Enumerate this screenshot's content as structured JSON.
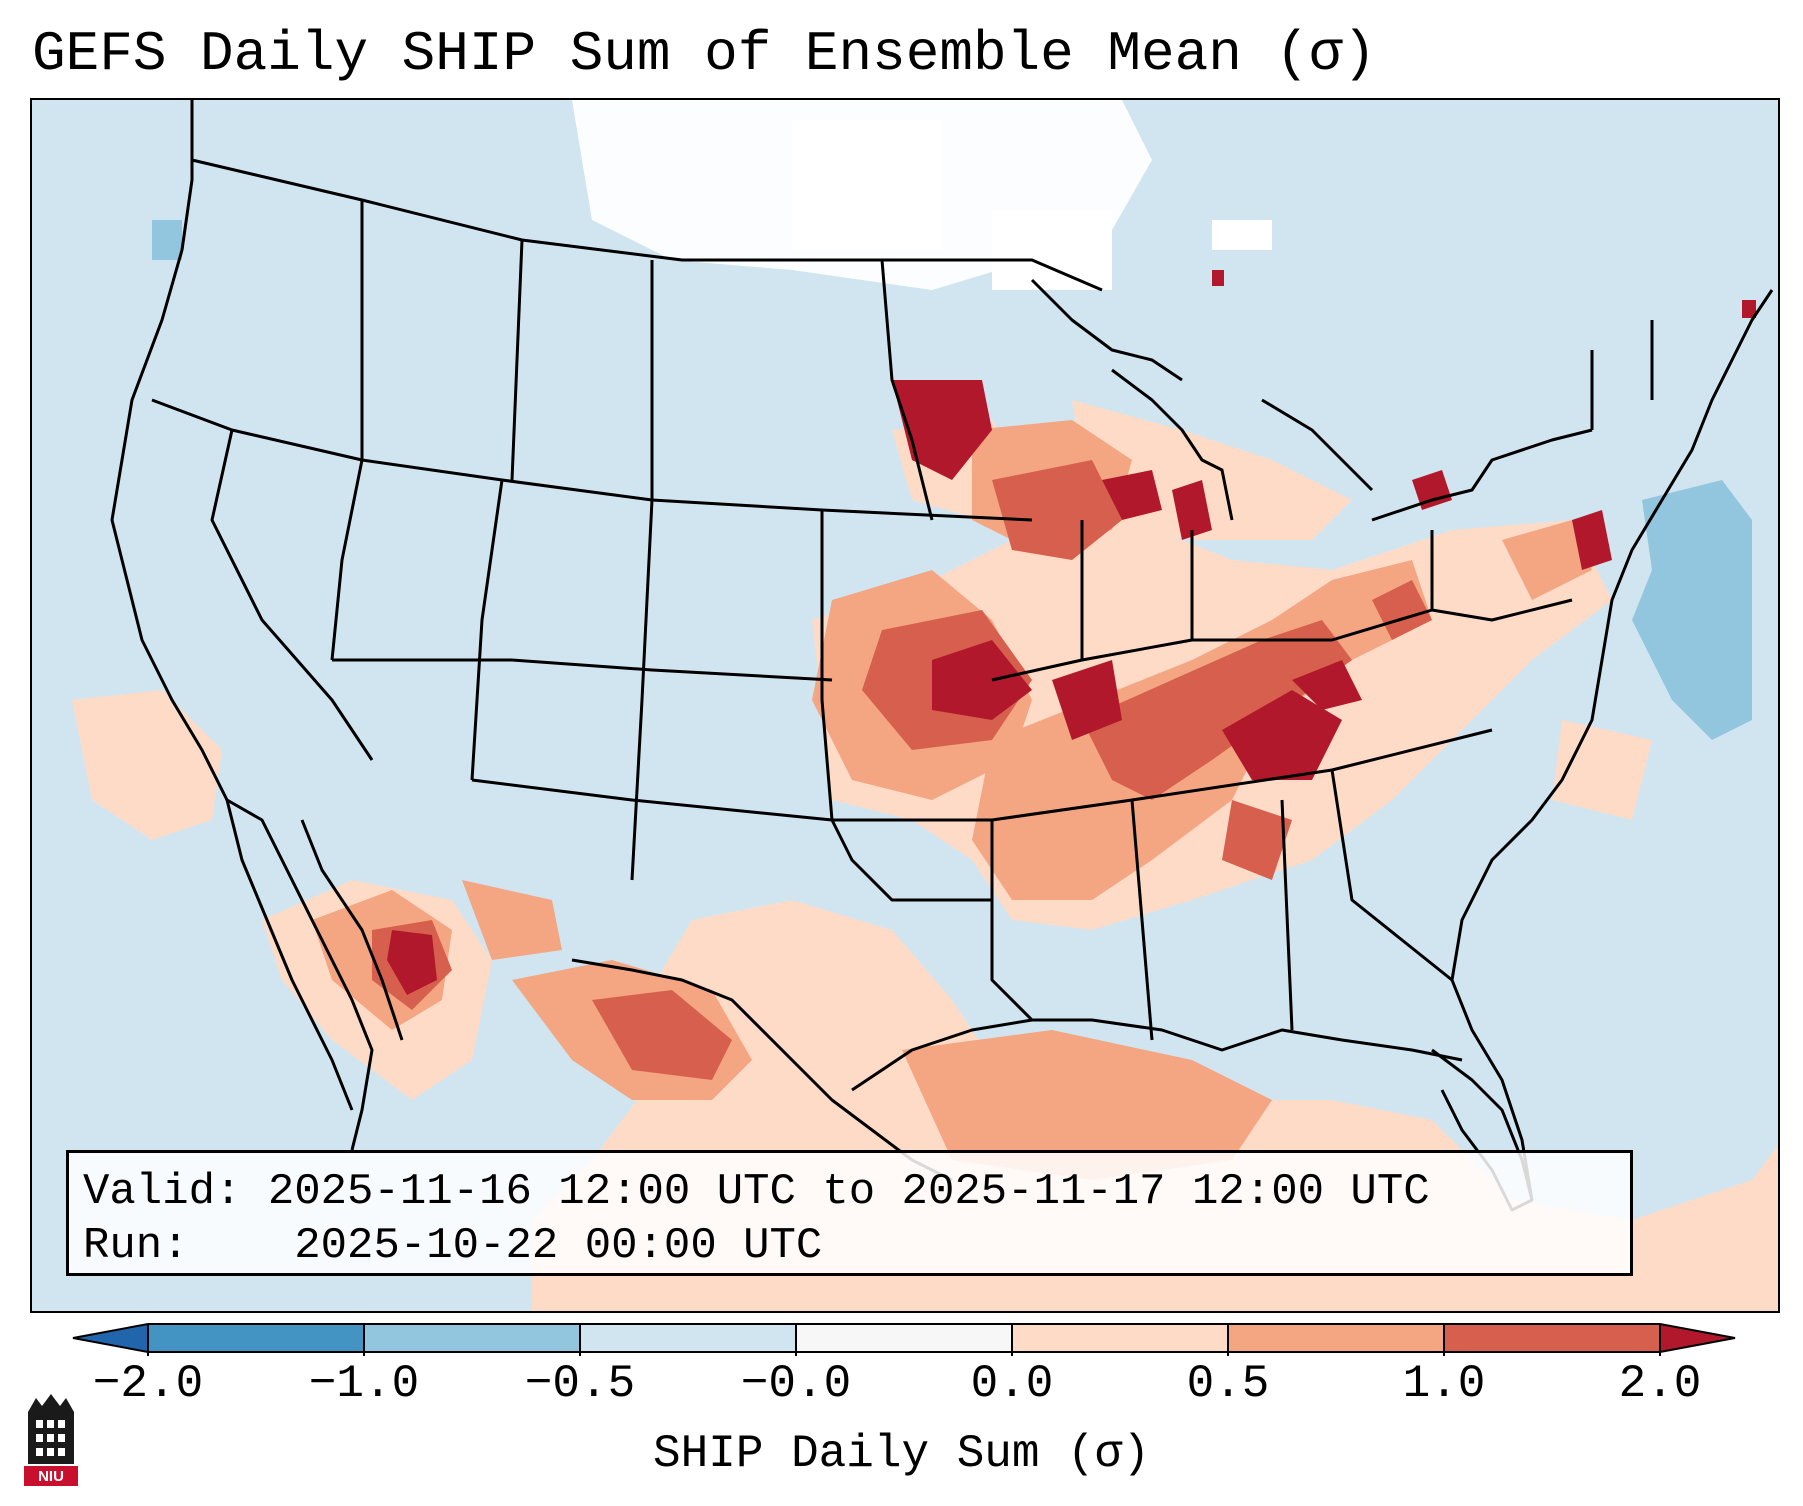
{
  "title": "GEFS Daily SHIP Sum of Ensemble Mean (σ)",
  "info": {
    "valid_label": "Valid:",
    "valid_value": "2025-11-16 12:00 UTC to 2025-11-17 12:00 UTC",
    "run_label": "Run:",
    "run_value": "2025-10-22 00:00 UTC"
  },
  "colorbar": {
    "label": "SHIP Daily Sum (σ)",
    "ticks": [
      "−2.0",
      "−1.0",
      "−0.5",
      "−0.0",
      "0.0",
      "0.5",
      "1.0",
      "2.0"
    ],
    "bin_colors": [
      "#2166ac",
      "#4393c3",
      "#92c5de",
      "#d1e5f0",
      "#f7f7f7",
      "#fddbc7",
      "#f4a582",
      "#d6604d",
      "#b2182b"
    ],
    "extend": "both"
  },
  "logo": {
    "text": "NIU"
  },
  "colors": {
    "ocean_background": "#d1e5f0",
    "near_zero": "#ffffff",
    "light_positive": "#fddbc7",
    "medium_positive": "#f4a582",
    "strong_positive": "#d6604d",
    "max_positive": "#b2182b",
    "light_negative": "#92c5de"
  }
}
